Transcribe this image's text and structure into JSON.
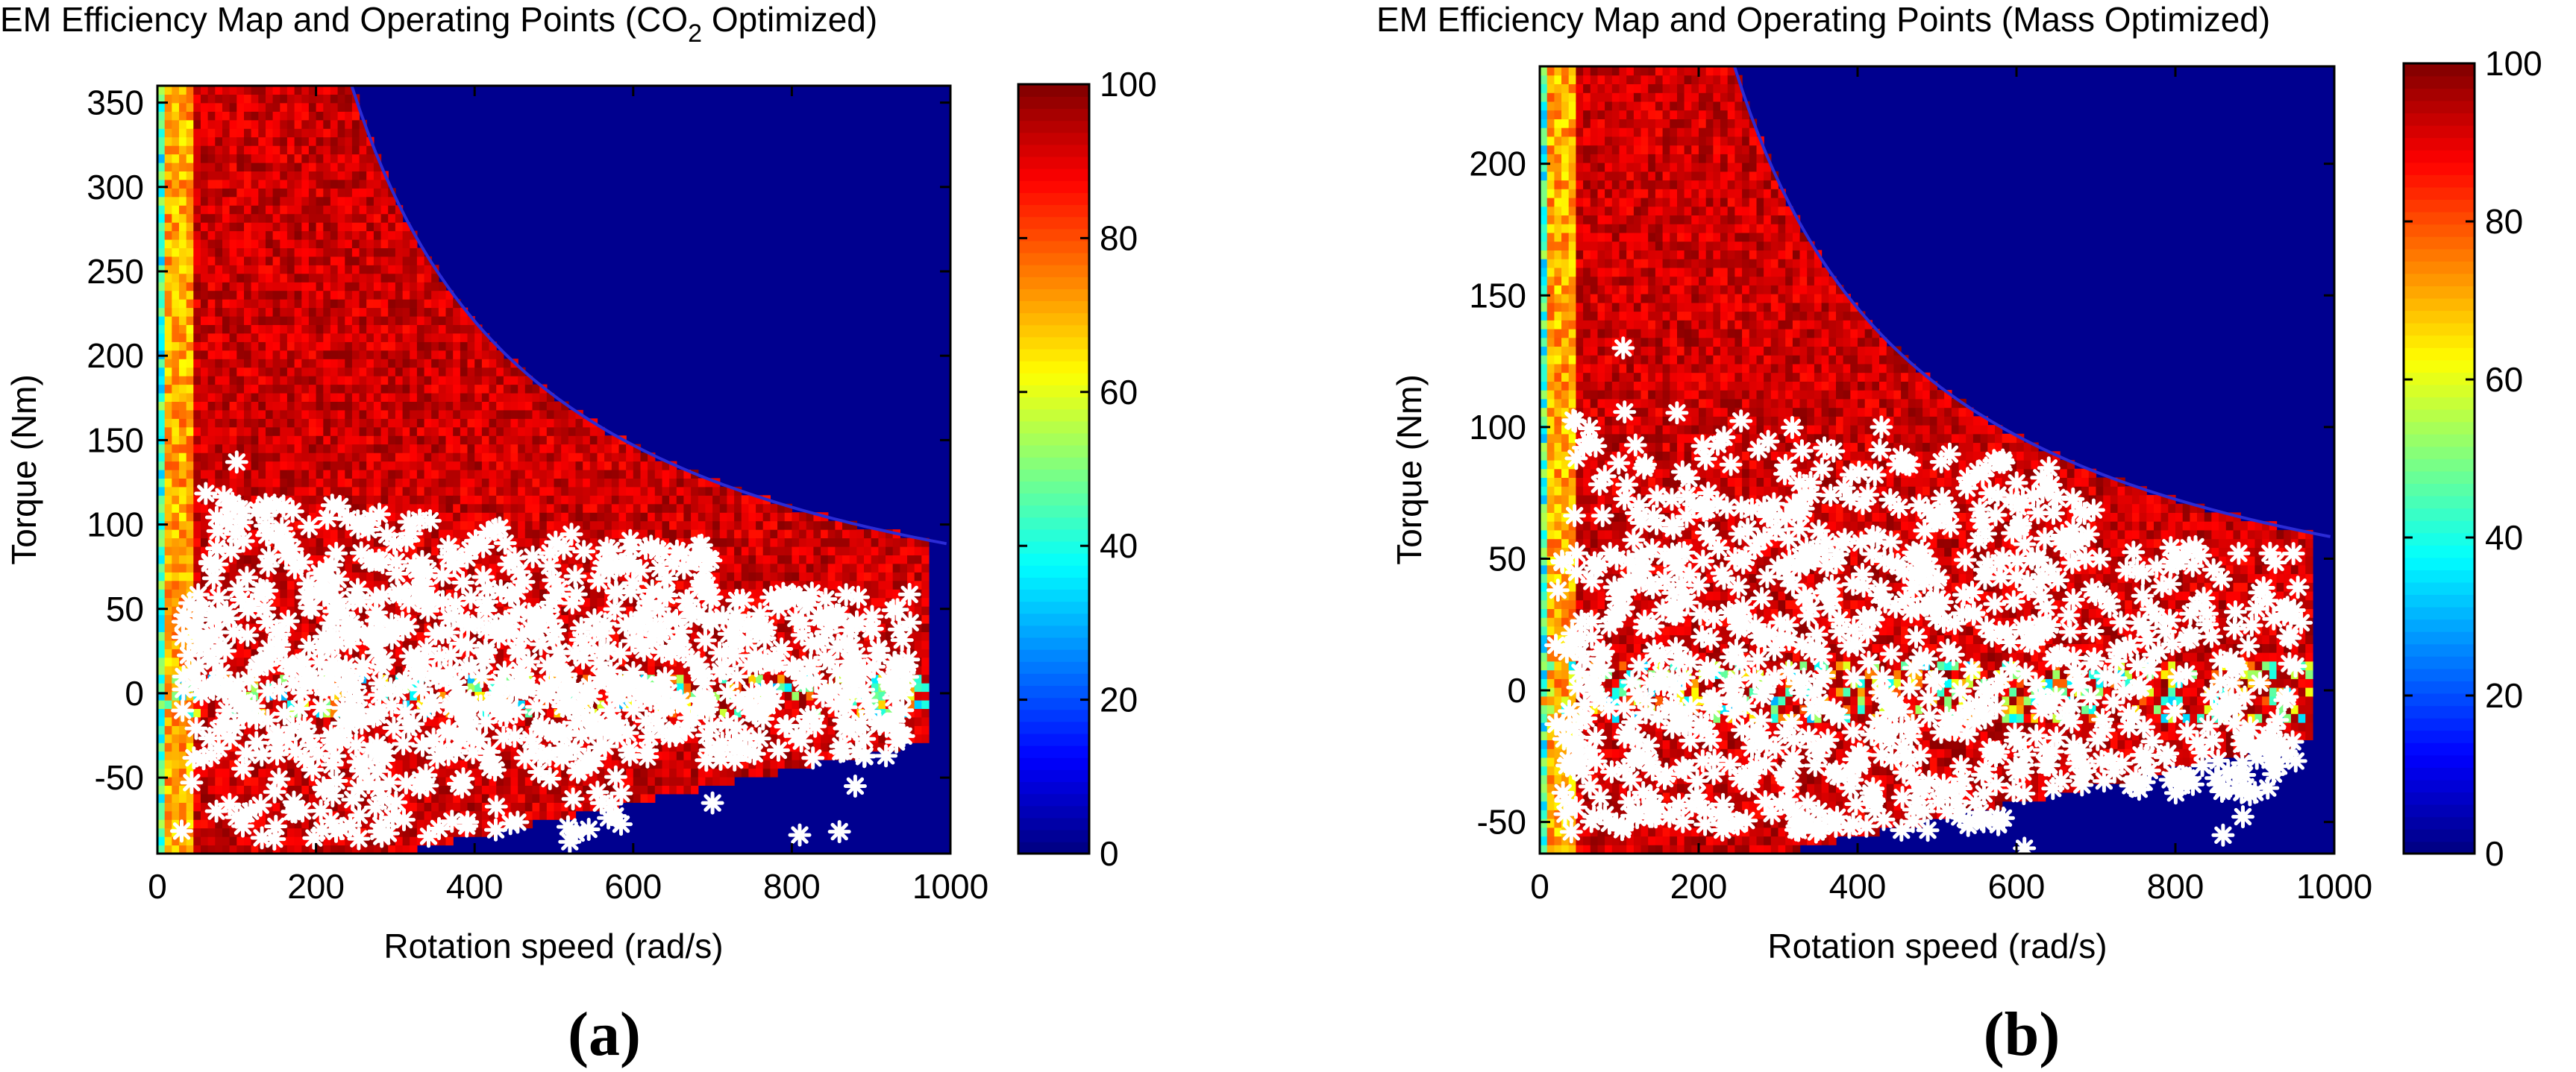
{
  "figure": {
    "panel_letters": [
      "(a)",
      "(b)"
    ],
    "colormap": "jet",
    "colorbar_range": [
      0,
      100
    ],
    "colors": {
      "background_region": "#00008f",
      "operating_point_marker": "#ffffff",
      "envelope_line": "#2b2bd6"
    }
  },
  "chart_data": [
    {
      "type": "heatmap",
      "title": "EM Efficiency Map and Operating Points (CO",
      "title_subscript": "2",
      "title_suffix": " Optimized)",
      "xlabel": "Rotation speed (rad/s)",
      "ylabel": "Torque (Nm)",
      "xlim": [
        0,
        1000
      ],
      "ylim": [
        -95,
        360
      ],
      "xticks": [
        0,
        200,
        400,
        600,
        800,
        1000
      ],
      "yticks": [
        -50,
        0,
        50,
        100,
        150,
        200,
        250,
        300,
        350
      ],
      "colorbar_ticks": [
        0,
        20,
        40,
        60,
        80,
        100
      ],
      "max_torque": 360,
      "corner_speed": 245,
      "min_torque_at_max_speed": -30,
      "efficiency_map": {
        "core_region_percent": [
          90,
          98
        ],
        "low_speed_band_percent": [
          30,
          70
        ],
        "outside_envelope_percent": 0
      },
      "operating_points": {
        "marker": "*",
        "dense_band": {
          "speed": [
            30,
            950
          ],
          "torque": [
            -40,
            60
          ]
        },
        "upper_cloud": {
          "speed": [
            60,
            700
          ],
          "torque": [
            60,
            120
          ]
        },
        "outliers": [
          {
            "speed": 100,
            "torque": 137
          },
          {
            "speed": 520,
            "torque": -88
          },
          {
            "speed": 700,
            "torque": -65
          },
          {
            "speed": 810,
            "torque": -84
          },
          {
            "speed": 860,
            "torque": -82
          },
          {
            "speed": 880,
            "torque": -55
          }
        ]
      }
    },
    {
      "type": "heatmap",
      "title": "EM Efficiency Map and Operating Points (Mass Optimized)",
      "title_subscript": "",
      "title_suffix": "",
      "xlabel": "Rotation speed (rad/s)",
      "ylabel": "Torque (Nm)",
      "xlim": [
        0,
        1000
      ],
      "ylim": [
        -62,
        237
      ],
      "xticks": [
        0,
        200,
        400,
        600,
        800,
        1000
      ],
      "yticks": [
        -50,
        0,
        50,
        100,
        150,
        200
      ],
      "colorbar_ticks": [
        0,
        20,
        40,
        60,
        80,
        100
      ],
      "max_torque": 237,
      "corner_speed": 245,
      "min_torque_at_max_speed": -20,
      "efficiency_map": {
        "core_region_percent": [
          90,
          98
        ],
        "low_speed_band_percent": [
          30,
          70
        ],
        "outside_envelope_percent": 0
      },
      "operating_points": {
        "marker": "*",
        "dense_band": {
          "speed": [
            20,
            960
          ],
          "torque": [
            -40,
            55
          ]
        },
        "upper_cloud": {
          "speed": [
            30,
            700
          ],
          "torque": [
            55,
            115
          ]
        },
        "outliers": [
          {
            "speed": 105,
            "torque": 130
          },
          {
            "speed": 430,
            "torque": 100
          },
          {
            "speed": 610,
            "torque": -60
          },
          {
            "speed": 860,
            "torque": -55
          },
          {
            "speed": 885,
            "torque": -48
          }
        ]
      }
    }
  ]
}
